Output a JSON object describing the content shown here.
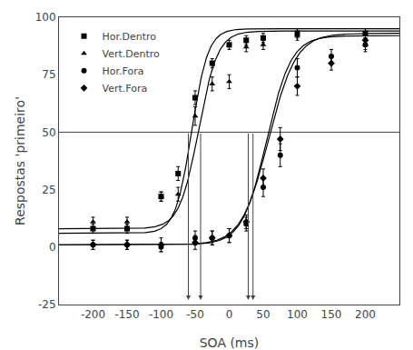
{
  "chart_data": {
    "type": "scatter",
    "xlabel": "SOA (ms)",
    "ylabel": "Respostas 'primeiro'",
    "xlim": [
      -250,
      250
    ],
    "ylim": [
      -25,
      100
    ],
    "xticks": [
      -200,
      -150,
      -100,
      -50,
      0,
      50,
      100,
      150,
      200
    ],
    "yticks": [
      -25,
      0,
      25,
      50,
      75,
      100
    ],
    "grid": false,
    "legend": "upper left",
    "hline": 50,
    "vlines": [
      -60,
      -42,
      28,
      35
    ],
    "arrow_y": -23,
    "series": [
      {
        "name": "Hor.Dentro",
        "marker": "square",
        "color": "black",
        "x": [
          -200,
          -150,
          -100,
          -75,
          -50,
          -25,
          0,
          25,
          50,
          100,
          200
        ],
        "values": [
          8,
          8,
          22,
          32,
          65,
          80,
          88,
          90,
          91,
          93,
          93
        ],
        "yerr": [
          2,
          2,
          2,
          3,
          3,
          2,
          2,
          2,
          2,
          2,
          2
        ],
        "boltzmann": {
          "A1": 6,
          "A2": 95,
          "x0": -55,
          "dx": 12
        }
      },
      {
        "name": "Vert.Dentro",
        "marker": "triangle-up",
        "color": "black",
        "x": [
          -200,
          -150,
          -100,
          -75,
          -50,
          -25,
          0,
          25,
          50,
          100,
          200
        ],
        "values": [
          11,
          11,
          22,
          23,
          57,
          71,
          72,
          87,
          88,
          92,
          88
        ],
        "yerr": [
          2,
          2,
          2,
          3,
          4,
          3,
          3,
          2,
          2,
          2,
          2
        ],
        "boltzmann": {
          "A1": 8,
          "A2": 94,
          "x0": -45,
          "dx": 14
        }
      },
      {
        "name": "Hor.Fora",
        "marker": "circle",
        "color": "black",
        "x": [
          -200,
          -150,
          -100,
          -50,
          -25,
          0,
          25,
          50,
          75,
          100,
          150,
          200
        ],
        "values": [
          1,
          1,
          0,
          4,
          4,
          5,
          10,
          26,
          40,
          78,
          83,
          88
        ],
        "yerr": [
          2,
          2,
          2,
          3,
          3,
          3,
          3,
          4,
          5,
          4,
          3,
          3
        ],
        "boltzmann": {
          "A1": 1,
          "A2": 92,
          "x0": 55,
          "dx": 18
        }
      },
      {
        "name": "Vert.Fora",
        "marker": "diamond",
        "color": "black",
        "x": [
          -200,
          -150,
          -100,
          -50,
          -25,
          0,
          25,
          50,
          75,
          100,
          150,
          200
        ],
        "values": [
          1,
          1,
          1,
          2,
          4,
          5,
          11,
          30,
          47,
          70,
          80,
          90
        ],
        "yerr": [
          2,
          2,
          3,
          3,
          3,
          3,
          3,
          4,
          5,
          4,
          3,
          2
        ],
        "boltzmann": {
          "A1": 1,
          "A2": 93,
          "x0": 58,
          "dx": 20
        }
      }
    ]
  }
}
